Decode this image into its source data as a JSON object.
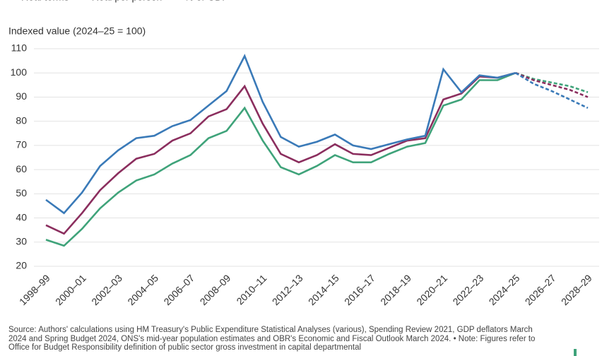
{
  "chart_data": {
    "type": "line",
    "y_label": "Indexed value (2024–25 = 100)",
    "categories": [
      "1998–99",
      null,
      "2000–01",
      null,
      "2002–03",
      null,
      "2004–05",
      null,
      "2006–07",
      null,
      "2008–09",
      null,
      "2010–11",
      null,
      "2012–13",
      null,
      "2014–15",
      null,
      "2016–17",
      null,
      "2018–19",
      null,
      "2020–21",
      null,
      "2022–23",
      null,
      "2024–25",
      null,
      "2026–27",
      null,
      "2028–29"
    ],
    "forecast_from": "2024–25",
    "series": [
      {
        "name": "Real terms",
        "color": "#3fa37a",
        "values": [
          31,
          28.5,
          35.5,
          44,
          50.5,
          55.5,
          58,
          62.5,
          66,
          73,
          76,
          85.5,
          72,
          61,
          58,
          61.5,
          66,
          63,
          63,
          66.5,
          69.5,
          71,
          86.5,
          89,
          97,
          97,
          100,
          97.5,
          96,
          94.5,
          92
        ]
      },
      {
        "name": "Real per person",
        "color": "#8b2e5e",
        "values": [
          37,
          33.5,
          42,
          51.5,
          58.5,
          64.5,
          66.5,
          72,
          75,
          82,
          85,
          94.5,
          79,
          66.5,
          63,
          66,
          70.5,
          66.5,
          66,
          69,
          72,
          73,
          89,
          91.5,
          98.5,
          98,
          100,
          97,
          95,
          93,
          90
        ]
      },
      {
        "name": "% of GDP",
        "color": "#3a7ab8",
        "values": [
          47.5,
          42,
          50.5,
          61.5,
          68,
          73,
          74,
          78,
          80.5,
          86.5,
          92.5,
          107,
          88,
          73.5,
          69.5,
          71.5,
          74.5,
          70,
          68.5,
          70.5,
          72.5,
          74,
          101.5,
          92,
          99,
          98,
          100,
          95.5,
          92.5,
          89,
          85.5
        ]
      }
    ],
    "ylim": [
      20,
      110
    ],
    "yticks": [
      20,
      30,
      40,
      50,
      60,
      70,
      80,
      90,
      100,
      110
    ],
    "grid": true,
    "legend": "top-left",
    "source": "Source: Authors' calculations using HM Treasury's Public Expenditure Statistical Analyses (various), Spending Review 2021, GDP deflators March 2024 and Spring Budget 2024, ONS's mid-year population estimates and OBR's Economic and Fiscal Outlook March 2024. • Note: Figures refer to Office for Budget Responsibility definition of public sector gross investment in capital departmental"
  }
}
